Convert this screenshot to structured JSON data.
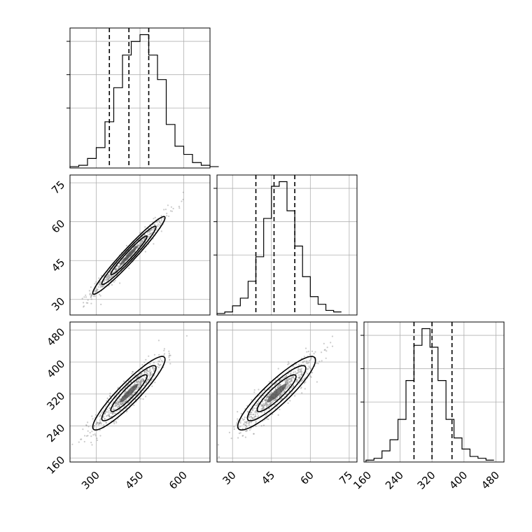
{
  "chart_data": {
    "type": "corner",
    "grid": true,
    "params": [
      {
        "range": [
          210,
          690
        ],
        "ticks": [
          300,
          450,
          600
        ],
        "tick_labels": [
          "300",
          "450",
          "600"
        ],
        "quantiles": [
          345,
          412,
          480
        ],
        "mean": 412,
        "sd": 62
      },
      {
        "range": [
          24,
          78
        ],
        "ticks": [
          30,
          45,
          60,
          75
        ],
        "tick_labels": [
          "30",
          "45",
          "60",
          "75"
        ],
        "quantiles": [
          39,
          46,
          54
        ],
        "mean": 47,
        "sd": 7.5
      },
      {
        "range": [
          150,
          500
        ],
        "ticks": [
          160,
          240,
          320,
          400,
          480
        ],
        "tick_labels": [
          "160",
          "240",
          "320",
          "400",
          "480"
        ],
        "quantiles": [
          275,
          320,
          370
        ],
        "mean": 322,
        "sd": 46
      }
    ],
    "histograms": [
      {
        "param": 0,
        "bin_start": 210,
        "bin_width": 30,
        "counts": [
          1,
          2,
          7,
          15,
          34,
          59,
          83,
          93,
          98,
          83,
          65,
          32,
          16,
          10,
          4,
          2,
          1
        ]
      },
      {
        "param": 1,
        "bin_start": 24,
        "bin_width": 3,
        "counts": [
          1,
          2,
          6,
          11,
          22,
          38,
          63,
          84,
          87,
          68,
          45,
          25,
          12,
          7,
          3,
          2
        ]
      },
      {
        "param": 2,
        "bin_start": 155,
        "bin_width": 20,
        "counts": [
          1,
          2,
          6,
          12,
          23,
          44,
          63,
          72,
          62,
          44,
          23,
          13,
          7,
          3,
          2,
          1
        ]
      }
    ],
    "scatter_panels": [
      {
        "x_param": 0,
        "y_param": 1,
        "correlation": 0.97
      },
      {
        "x_param": 0,
        "y_param": 2,
        "correlation": 0.92
      },
      {
        "x_param": 1,
        "y_param": 2,
        "correlation": 0.9
      }
    ],
    "contour_levels": [
      0.5,
      1.0,
      1.5,
      2.0
    ]
  }
}
